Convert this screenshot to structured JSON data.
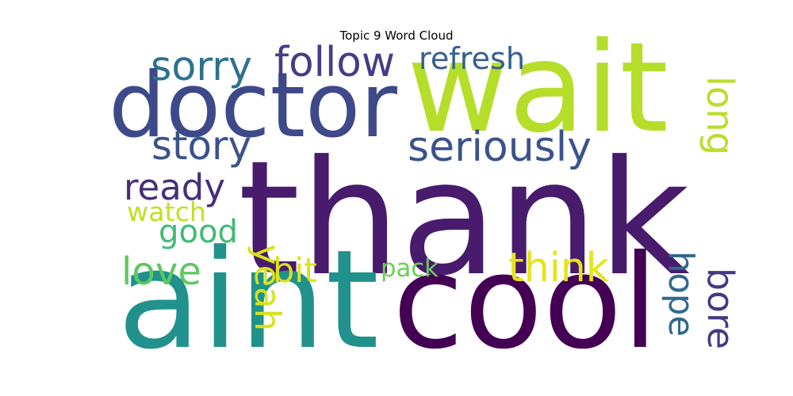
{
  "chart_data": {
    "type": "wordcloud",
    "title": "Topic 9 Word Cloud",
    "words": [
      {
        "text": "thank",
        "color": "#481b6d"
      },
      {
        "text": "cool",
        "color": "#440154"
      },
      {
        "text": "aint",
        "color": "#21918c"
      },
      {
        "text": "wait",
        "color": "#b5de2b"
      },
      {
        "text": "doctor",
        "color": "#3e4989"
      },
      {
        "text": "follow",
        "color": "#433e85"
      },
      {
        "text": "sorry",
        "color": "#2c728e"
      },
      {
        "text": "refresh",
        "color": "#35608d"
      },
      {
        "text": "long",
        "color": "#b8de29"
      },
      {
        "text": "story",
        "color": "#3b528b"
      },
      {
        "text": "seriously",
        "color": "#3b528b"
      },
      {
        "text": "ready",
        "color": "#472d7b"
      },
      {
        "text": "watch",
        "color": "#c2df23"
      },
      {
        "text": "good",
        "color": "#3fbc73"
      },
      {
        "text": "love",
        "color": "#5ec962"
      },
      {
        "text": "yeah",
        "color": "#d8e219"
      },
      {
        "text": "bit",
        "color": "#dde318"
      },
      {
        "text": "pack",
        "color": "#6ccd5a"
      },
      {
        "text": "think",
        "color": "#e5e419"
      },
      {
        "text": "hope",
        "color": "#31688e"
      },
      {
        "text": "bore",
        "color": "#443983"
      }
    ]
  }
}
